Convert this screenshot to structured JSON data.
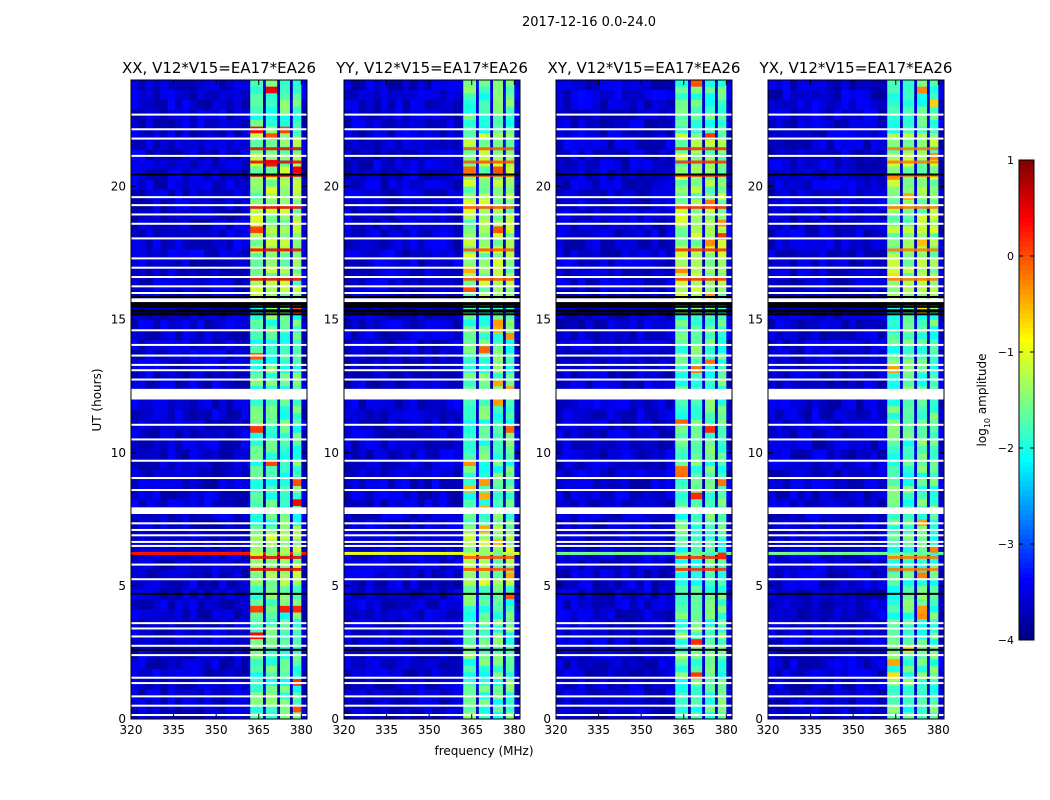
{
  "figure_title": "2017-12-16 0.0-24.0",
  "xlabel": "frequency (MHz)",
  "ylabel": "UT (hours)",
  "colorbar": {
    "label_prefix": "log",
    "label_sub": "10",
    "label_suffix": " amplitude",
    "range": [
      -4,
      1
    ],
    "ticks": [
      {
        "value": 1,
        "label": "1"
      },
      {
        "value": 0,
        "label": "0"
      },
      {
        "value": -1,
        "label": "−1"
      },
      {
        "value": -2,
        "label": "−2"
      },
      {
        "value": -3,
        "label": "−3"
      },
      {
        "value": -4,
        "label": "−4"
      }
    ],
    "colormap": "jet"
  },
  "chart_data": [
    {
      "type": "heatmap",
      "title": "XX, V12*V15=EA17*EA26",
      "pol": "XX",
      "xlim": [
        320,
        382
      ],
      "ylim": [
        0,
        24
      ],
      "xticks": [
        {
          "value": 320,
          "label": "320"
        },
        {
          "value": 335,
          "label": "335"
        },
        {
          "value": 350,
          "label": "350"
        },
        {
          "value": 365,
          "label": "365"
        },
        {
          "value": 380,
          "label": "380"
        }
      ],
      "yticks": [
        {
          "value": 0,
          "label": "0"
        },
        {
          "value": 5,
          "label": "5"
        },
        {
          "value": 10,
          "label": "10"
        },
        {
          "value": 15,
          "label": "15"
        },
        {
          "value": 20,
          "label": "20"
        }
      ],
      "background_log_amplitude": -3.6,
      "active_band_mhz": [
        360,
        378
      ],
      "band_peak_log_amplitude": 0.5,
      "rfi_line_ut": 6.2,
      "rfi_line_log_amplitude": 0.3
    },
    {
      "type": "heatmap",
      "title": "YY, V12*V15=EA17*EA26",
      "pol": "YY",
      "xlim": [
        320,
        382
      ],
      "ylim": [
        0,
        24
      ],
      "xticks": [
        {
          "value": 320,
          "label": "320"
        },
        {
          "value": 335,
          "label": "335"
        },
        {
          "value": 350,
          "label": "350"
        },
        {
          "value": 365,
          "label": "365"
        },
        {
          "value": 380,
          "label": "380"
        }
      ],
      "yticks": [
        {
          "value": 0,
          "label": "0"
        },
        {
          "value": 5,
          "label": "5"
        },
        {
          "value": 10,
          "label": "10"
        },
        {
          "value": 15,
          "label": "15"
        },
        {
          "value": 20,
          "label": "20"
        }
      ],
      "background_log_amplitude": -3.6,
      "active_band_mhz": [
        360,
        378
      ],
      "band_peak_log_amplitude": 0.0,
      "rfi_line_ut": 6.2,
      "rfi_line_log_amplitude": -1.0
    },
    {
      "type": "heatmap",
      "title": "XY, V12*V15=EA17*EA26",
      "pol": "XY",
      "xlim": [
        320,
        382
      ],
      "ylim": [
        0,
        24
      ],
      "xticks": [
        {
          "value": 320,
          "label": "320"
        },
        {
          "value": 335,
          "label": "335"
        },
        {
          "value": 350,
          "label": "350"
        },
        {
          "value": 365,
          "label": "365"
        },
        {
          "value": 380,
          "label": "380"
        }
      ],
      "yticks": [
        {
          "value": 0,
          "label": "0"
        },
        {
          "value": 5,
          "label": "5"
        },
        {
          "value": 10,
          "label": "10"
        },
        {
          "value": 15,
          "label": "15"
        },
        {
          "value": 20,
          "label": "20"
        }
      ],
      "background_log_amplitude": -3.6,
      "active_band_mhz": [
        360,
        378
      ],
      "band_peak_log_amplitude": 0.2,
      "rfi_line_ut": 6.2,
      "rfi_line_log_amplitude": -1.6
    },
    {
      "type": "heatmap",
      "title": "YX, V12*V15=EA17*EA26",
      "pol": "YX",
      "xlim": [
        320,
        382
      ],
      "ylim": [
        0,
        24
      ],
      "xticks": [
        {
          "value": 320,
          "label": "320"
        },
        {
          "value": 335,
          "label": "335"
        },
        {
          "value": 350,
          "label": "350"
        },
        {
          "value": 365,
          "label": "365"
        },
        {
          "value": 380,
          "label": "380"
        }
      ],
      "yticks": [
        {
          "value": 0,
          "label": "0"
        },
        {
          "value": 5,
          "label": "5"
        },
        {
          "value": 10,
          "label": "10"
        },
        {
          "value": 15,
          "label": "15"
        },
        {
          "value": 20,
          "label": "20"
        }
      ],
      "background_log_amplitude": -3.6,
      "active_band_mhz": [
        360,
        378
      ],
      "band_peak_log_amplitude": -0.2,
      "rfi_line_ut": 6.2,
      "rfi_line_log_amplitude": -1.6
    }
  ],
  "flagged_rows_ut": [
    0.15,
    0.5,
    0.85,
    1.35,
    1.55,
    2.4,
    2.75,
    3.1,
    3.4,
    3.6,
    5.25,
    5.8,
    6.5,
    6.65,
    6.9,
    7.1,
    7.35,
    8.6,
    9.05,
    9.7,
    10.5,
    11.05,
    12.75,
    13.1,
    13.3,
    13.65,
    14.05,
    14.6,
    15.75,
    16.0,
    16.25,
    16.6,
    16.95,
    17.3,
    18.05,
    18.6,
    18.95,
    19.3,
    19.6,
    21.15,
    21.8,
    22.15,
    22.7
  ],
  "flagged_bands_ut": [
    [
      7.7,
      7.95
    ],
    [
      12.0,
      12.4
    ],
    [
      15.65,
      15.8
    ]
  ],
  "black_rows_ut": [
    2.6,
    4.7,
    15.2,
    15.3,
    15.35,
    15.48,
    15.56,
    15.62,
    15.85,
    20.45
  ],
  "bright_rows_ut": [
    16.5,
    17.6,
    20.9,
    19.2,
    6.05,
    5.6,
    20.4,
    21.4
  ]
}
